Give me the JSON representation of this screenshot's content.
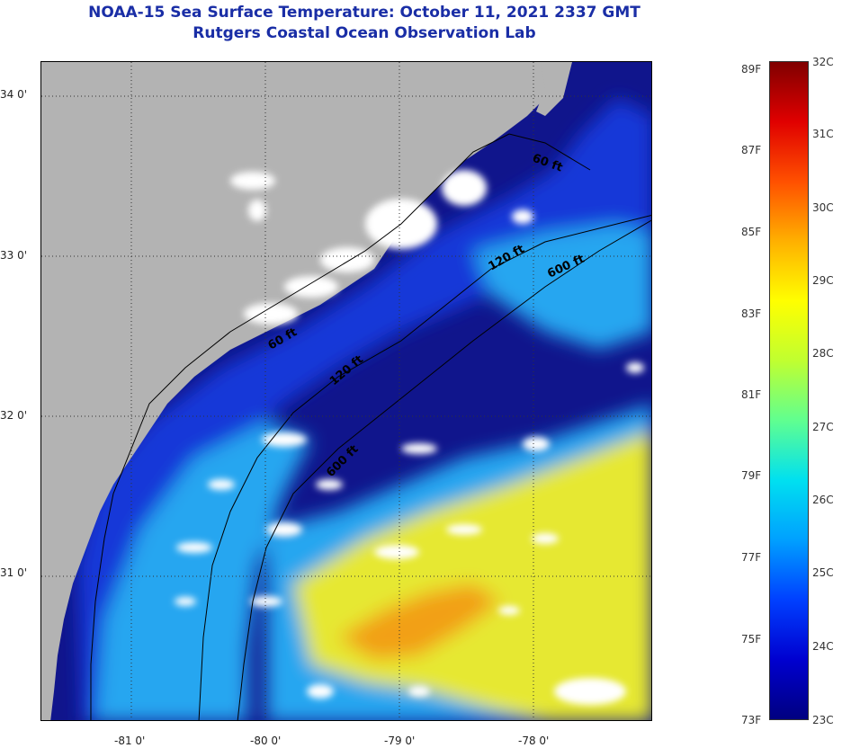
{
  "header": {
    "title": "NOAA-15 Sea Surface Temperature:  October 11, 2021 2337 GMT",
    "subtitle": "Rutgers Coastal Ocean Observation Lab"
  },
  "map": {
    "lat_labels": [
      {
        "value": 34.0,
        "text": "34 0'"
      },
      {
        "value": 33.0,
        "text": "33 0'"
      },
      {
        "value": 32.0,
        "text": "32 0'"
      },
      {
        "value": 31.0,
        "text": "31 0'"
      }
    ],
    "lon_labels": [
      {
        "value": -81.0,
        "text": "-81 0'"
      },
      {
        "value": -80.0,
        "text": "-80 0'"
      },
      {
        "value": -79.0,
        "text": "-79 0'"
      },
      {
        "value": -78.0,
        "text": "-78 0'"
      }
    ],
    "isobath_labels": [
      {
        "text": "60 ft"
      },
      {
        "text": "120 ft"
      },
      {
        "text": "600 ft"
      },
      {
        "text": "120 ft"
      },
      {
        "text": "600 ft"
      },
      {
        "text": "60 ft"
      }
    ],
    "colors": {
      "land": "#b3b3b3",
      "cloud": "#ffffff",
      "cold_water": "#10158c",
      "shelf_water": "#1838d8",
      "mid_water": "#26a6f0",
      "warm_water": "#e6e833",
      "hot_water": "#f2a019",
      "isobath": "#000000"
    }
  },
  "colorbar": {
    "fahrenheit_labels": [
      "89F",
      "87F",
      "85F",
      "83F",
      "81F",
      "79F",
      "77F",
      "75F",
      "73F"
    ],
    "celsius_labels": [
      "32C",
      "31C",
      "30C",
      "29C",
      "28C",
      "27C",
      "26C",
      "25C",
      "24C",
      "23C"
    ],
    "gradient": [
      "#000080",
      "#0000d0",
      "#0040ff",
      "#00a0ff",
      "#00e0f0",
      "#60ff90",
      "#c0ff30",
      "#ffff00",
      "#ffb000",
      "#ff5000",
      "#e00000",
      "#800000"
    ]
  }
}
